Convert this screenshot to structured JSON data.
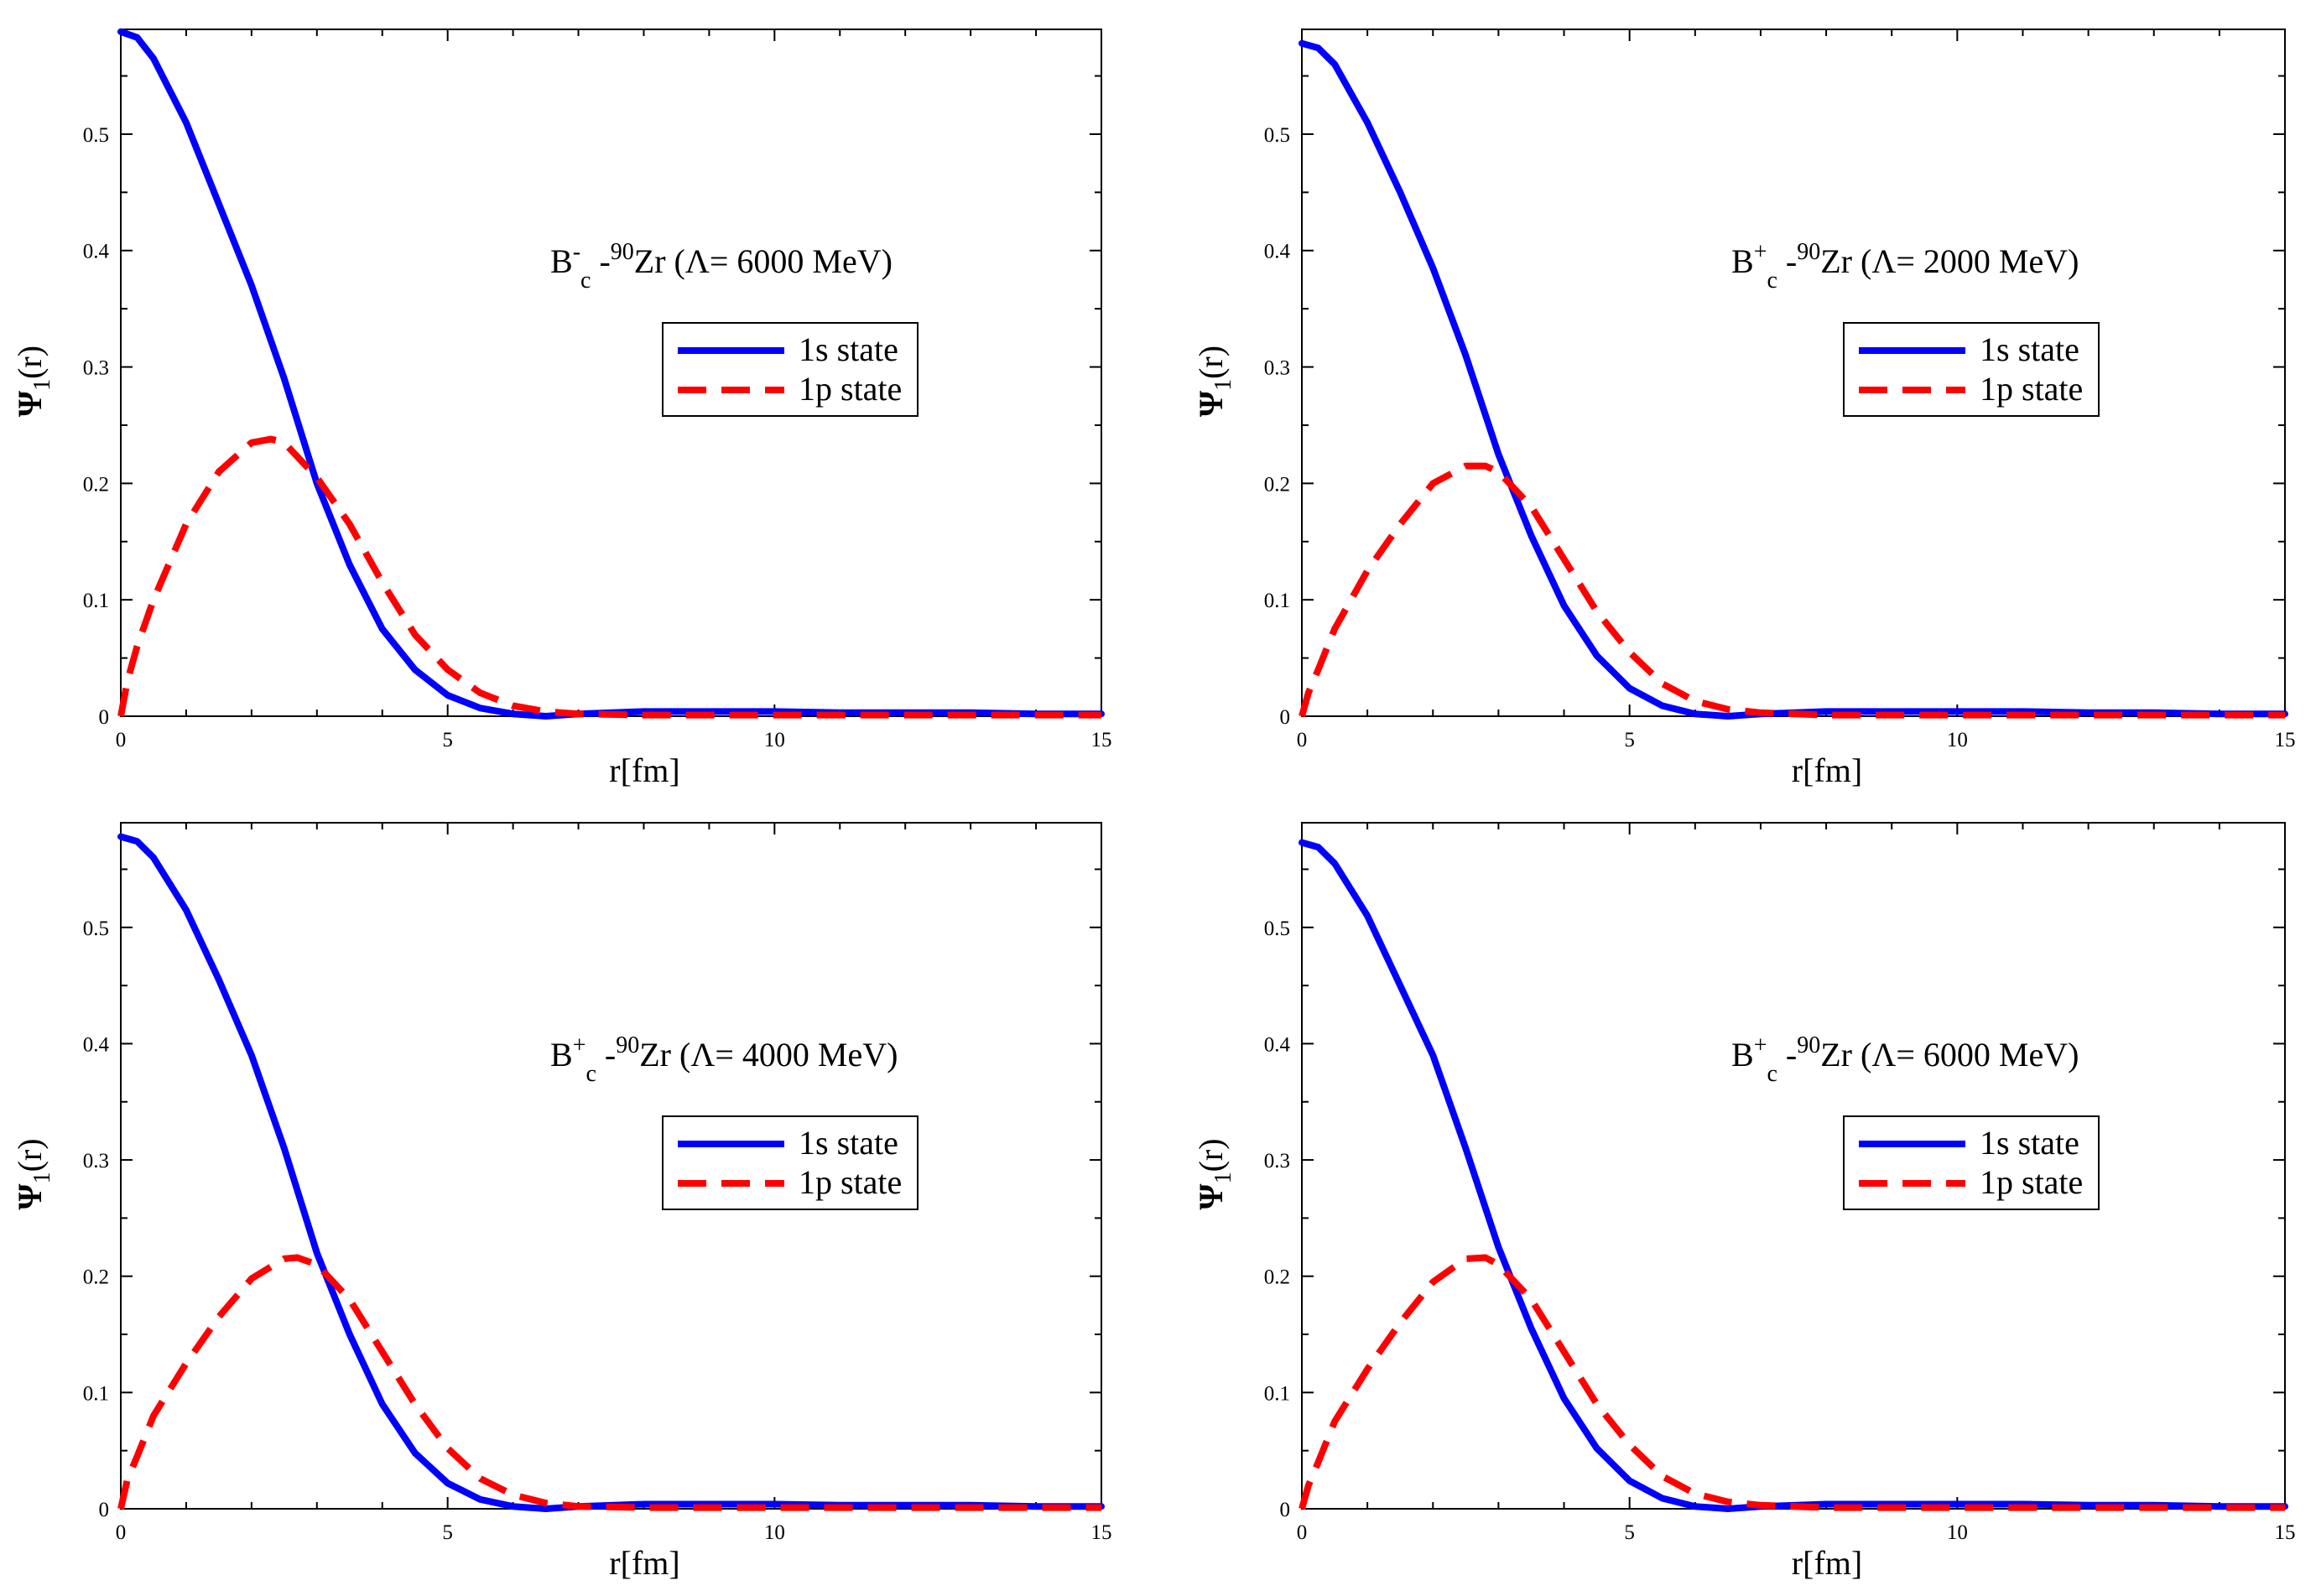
{
  "chart_data": [
    {
      "type": "line",
      "title_parts": {
        "b": "B",
        "sup_charge": "-",
        "sub": "c",
        "dash": "-",
        "sup_mass": "90",
        "nucleus": "Zr",
        "lambda": "(Λ= 6000 MeV)"
      },
      "xlabel": "r[fm]",
      "ylabel_parts": {
        "psi": "Ψ",
        "sub": "1",
        "arg": "(r)"
      },
      "xlim": [
        0,
        15
      ],
      "ylim": [
        0,
        0.59
      ],
      "xticks": [
        0,
        5,
        10,
        15
      ],
      "yticks": [
        0,
        0.1,
        0.2,
        0.3,
        0.4,
        0.5
      ],
      "legend_position": "center-right",
      "series": [
        {
          "name": "1s state",
          "color": "#0000ff",
          "style": "solid",
          "x": [
            0,
            0.25,
            0.5,
            1,
            1.5,
            2,
            2.5,
            3,
            3.5,
            4,
            4.5,
            5,
            5.5,
            6,
            6.5,
            7,
            8,
            9,
            10,
            11,
            12,
            13,
            14,
            15
          ],
          "y": [
            0.588,
            0.583,
            0.565,
            0.51,
            0.44,
            0.37,
            0.29,
            0.2,
            0.13,
            0.075,
            0.04,
            0.018,
            0.007,
            0.002,
            0.0,
            0.002,
            0.004,
            0.004,
            0.004,
            0.003,
            0.003,
            0.003,
            0.002,
            0.002
          ]
        },
        {
          "name": "1p state",
          "color": "#ff0000",
          "style": "dashed",
          "x": [
            0,
            0.1,
            0.25,
            0.5,
            1,
            1.5,
            2,
            2.3,
            2.5,
            3,
            3.5,
            4,
            4.5,
            5,
            5.5,
            6,
            6.5,
            7,
            8,
            9,
            10,
            11,
            12,
            13,
            14,
            15
          ],
          "y": [
            0.0,
            0.03,
            0.06,
            0.1,
            0.165,
            0.21,
            0.235,
            0.238,
            0.235,
            0.205,
            0.165,
            0.115,
            0.07,
            0.04,
            0.02,
            0.009,
            0.004,
            0.002,
            0.001,
            0.001,
            0.001,
            0.001,
            0.001,
            0.001,
            0.001,
            0.001
          ]
        }
      ]
    },
    {
      "type": "line",
      "title_parts": {
        "b": "B",
        "sup_charge": "+",
        "sub": "c",
        "dash": "-",
        "sup_mass": "90",
        "nucleus": "Zr",
        "lambda": "(Λ= 2000 MeV)"
      },
      "xlabel": "r[fm]",
      "ylabel_parts": {
        "psi": "Ψ",
        "sub": "1",
        "arg": "(r)"
      },
      "xlim": [
        0,
        15
      ],
      "ylim": [
        0,
        0.59
      ],
      "xticks": [
        0,
        5,
        10,
        15
      ],
      "yticks": [
        0,
        0.1,
        0.2,
        0.3,
        0.4,
        0.5
      ],
      "legend_position": "center-right",
      "series": [
        {
          "name": "1s state",
          "color": "#0000ff",
          "style": "solid",
          "x": [
            0,
            0.25,
            0.5,
            1,
            1.5,
            2,
            2.5,
            3,
            3.5,
            4,
            4.5,
            5,
            5.5,
            6,
            6.5,
            7,
            8,
            9,
            10,
            11,
            12,
            13,
            14,
            15
          ],
          "y": [
            0.578,
            0.574,
            0.56,
            0.51,
            0.45,
            0.385,
            0.31,
            0.225,
            0.155,
            0.095,
            0.052,
            0.024,
            0.009,
            0.002,
            0.0,
            0.002,
            0.004,
            0.004,
            0.004,
            0.004,
            0.003,
            0.003,
            0.002,
            0.002
          ]
        },
        {
          "name": "1p state",
          "color": "#ff0000",
          "style": "dashed",
          "x": [
            0,
            0.1,
            0.25,
            0.5,
            1,
            1.5,
            2,
            2.5,
            2.8,
            3,
            3.5,
            4,
            4.5,
            5,
            5.5,
            6,
            6.5,
            7,
            8,
            9,
            10,
            11,
            12,
            13,
            14,
            15
          ],
          "y": [
            0.0,
            0.02,
            0.04,
            0.075,
            0.125,
            0.165,
            0.2,
            0.215,
            0.215,
            0.21,
            0.18,
            0.135,
            0.09,
            0.055,
            0.028,
            0.013,
            0.006,
            0.003,
            0.001,
            0.001,
            0.001,
            0.001,
            0.001,
            0.001,
            0.001,
            0.001
          ]
        }
      ]
    },
    {
      "type": "line",
      "title_parts": {
        "b": "B",
        "sup_charge": "+",
        "sub": "c",
        "dash": "-",
        "sup_mass": "90",
        "nucleus": "Zr",
        "lambda": "(Λ= 4000 MeV)"
      },
      "xlabel": "r[fm]",
      "ylabel_parts": {
        "psi": "Ψ",
        "sub": "1",
        "arg": "(r)"
      },
      "xlim": [
        0,
        15
      ],
      "ylim": [
        0,
        0.59
      ],
      "xticks": [
        0,
        5,
        10,
        15
      ],
      "yticks": [
        0,
        0.1,
        0.2,
        0.3,
        0.4,
        0.5
      ],
      "legend_position": "center-right",
      "series": [
        {
          "name": "1s state",
          "color": "#0000ff",
          "style": "solid",
          "x": [
            0,
            0.25,
            0.5,
            1,
            1.5,
            2,
            2.5,
            3,
            3.5,
            4,
            4.5,
            5,
            5.5,
            6,
            6.5,
            7,
            8,
            9,
            10,
            11,
            12,
            13,
            14,
            15
          ],
          "y": [
            0.578,
            0.574,
            0.56,
            0.515,
            0.455,
            0.39,
            0.31,
            0.22,
            0.15,
            0.09,
            0.048,
            0.022,
            0.008,
            0.002,
            0.0,
            0.002,
            0.004,
            0.004,
            0.004,
            0.003,
            0.003,
            0.003,
            0.002,
            0.002
          ]
        },
        {
          "name": "1p state",
          "color": "#ff0000",
          "style": "dashed",
          "x": [
            0,
            0.1,
            0.25,
            0.5,
            1,
            1.5,
            2,
            2.5,
            2.7,
            3,
            3.5,
            4,
            4.5,
            5,
            5.5,
            6,
            6.5,
            7,
            8,
            9,
            10,
            11,
            12,
            13,
            14,
            15
          ],
          "y": [
            0.0,
            0.025,
            0.045,
            0.08,
            0.125,
            0.165,
            0.198,
            0.215,
            0.216,
            0.21,
            0.18,
            0.135,
            0.09,
            0.052,
            0.026,
            0.012,
            0.005,
            0.002,
            0.001,
            0.001,
            0.001,
            0.001,
            0.001,
            0.001,
            0.001,
            0.001
          ]
        }
      ]
    },
    {
      "type": "line",
      "title_parts": {
        "b": "B",
        "sup_charge": "+",
        "sub": "c",
        "dash": "-",
        "sup_mass": "90",
        "nucleus": "Zr",
        "lambda": "(Λ= 6000 MeV)"
      },
      "xlabel": "r[fm]",
      "ylabel_parts": {
        "psi": "Ψ",
        "sub": "1",
        "arg": "(r)"
      },
      "xlim": [
        0,
        15
      ],
      "ylim": [
        0,
        0.59
      ],
      "xticks": [
        0,
        5,
        10,
        15
      ],
      "yticks": [
        0,
        0.1,
        0.2,
        0.3,
        0.4,
        0.5
      ],
      "legend_position": "center-right",
      "series": [
        {
          "name": "1s state",
          "color": "#0000ff",
          "style": "solid",
          "x": [
            0,
            0.25,
            0.5,
            1,
            1.5,
            2,
            2.5,
            3,
            3.5,
            4,
            4.5,
            5,
            5.5,
            6,
            6.5,
            7,
            8,
            9,
            10,
            11,
            12,
            13,
            14,
            15
          ],
          "y": [
            0.573,
            0.569,
            0.555,
            0.51,
            0.45,
            0.39,
            0.31,
            0.225,
            0.155,
            0.095,
            0.052,
            0.024,
            0.009,
            0.002,
            0.0,
            0.002,
            0.004,
            0.004,
            0.004,
            0.004,
            0.003,
            0.003,
            0.002,
            0.002
          ]
        },
        {
          "name": "1p state",
          "color": "#ff0000",
          "style": "dashed",
          "x": [
            0,
            0.1,
            0.25,
            0.5,
            1,
            1.5,
            2,
            2.5,
            2.8,
            3,
            3.5,
            4,
            4.5,
            5,
            5.5,
            6,
            6.5,
            7,
            8,
            9,
            10,
            11,
            12,
            13,
            14,
            15
          ],
          "y": [
            0.0,
            0.02,
            0.04,
            0.075,
            0.12,
            0.16,
            0.195,
            0.215,
            0.216,
            0.21,
            0.18,
            0.135,
            0.09,
            0.055,
            0.028,
            0.013,
            0.006,
            0.003,
            0.001,
            0.001,
            0.001,
            0.001,
            0.001,
            0.001,
            0.001,
            0.001
          ]
        }
      ]
    }
  ]
}
